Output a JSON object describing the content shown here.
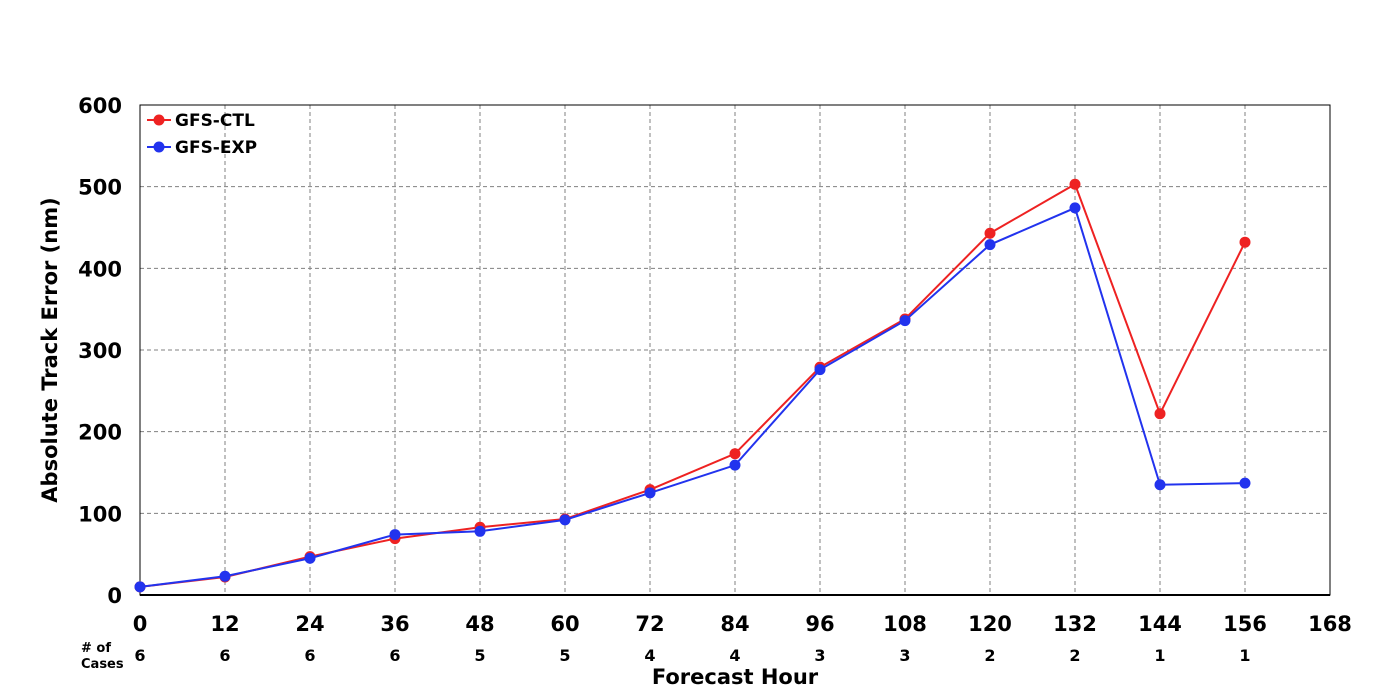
{
  "chart_data": {
    "type": "line",
    "xlabel": "Forecast Hour",
    "ylabel": "Absolute Track Error (nm)",
    "xlim": [
      0,
      168
    ],
    "ylim": [
      0,
      600
    ],
    "xticks": [
      0,
      12,
      24,
      36,
      48,
      60,
      72,
      84,
      96,
      108,
      120,
      132,
      144,
      156,
      168
    ],
    "yticks": [
      0,
      100,
      200,
      300,
      400,
      500,
      600
    ],
    "grid": true,
    "legend_position": "top-left",
    "cases_label": "# of Cases",
    "cases_label_lines": [
      "# of",
      "Cases"
    ],
    "cases": [
      {
        "x": 0,
        "count": "6"
      },
      {
        "x": 12,
        "count": "6"
      },
      {
        "x": 24,
        "count": "6"
      },
      {
        "x": 36,
        "count": "6"
      },
      {
        "x": 48,
        "count": "5"
      },
      {
        "x": 60,
        "count": "5"
      },
      {
        "x": 72,
        "count": "4"
      },
      {
        "x": 84,
        "count": "4"
      },
      {
        "x": 96,
        "count": "3"
      },
      {
        "x": 108,
        "count": "3"
      },
      {
        "x": 120,
        "count": "2"
      },
      {
        "x": 132,
        "count": "2"
      },
      {
        "x": 144,
        "count": "1"
      },
      {
        "x": 156,
        "count": "1"
      }
    ],
    "series": [
      {
        "name": "GFS-CTL",
        "color": "#ee2222",
        "x": [
          0,
          12,
          24,
          36,
          48,
          60,
          72,
          84,
          96,
          108,
          120,
          132,
          144,
          156
        ],
        "values": [
          10,
          22,
          47,
          69,
          83,
          93,
          129,
          173,
          279,
          338,
          443,
          503,
          222,
          432
        ]
      },
      {
        "name": "GFS-EXP",
        "color": "#2233ee",
        "x": [
          0,
          12,
          24,
          36,
          48,
          60,
          72,
          84,
          96,
          108,
          120,
          132,
          144,
          156
        ],
        "values": [
          10,
          23,
          45,
          74,
          78,
          92,
          125,
          159,
          276,
          336,
          429,
          474,
          135,
          137
        ]
      }
    ]
  }
}
